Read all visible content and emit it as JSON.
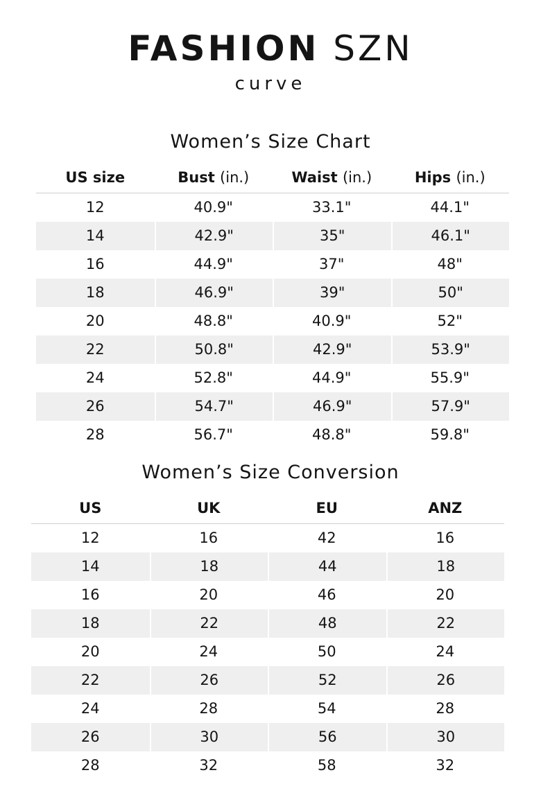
{
  "brand": {
    "title_bold": "FASHION",
    "title_light": "SZN",
    "subtitle": "curve"
  },
  "size_chart": {
    "title": "Women’s Size Chart",
    "headers": [
      {
        "label": "US size",
        "unit": ""
      },
      {
        "label": "Bust",
        "unit": "(in.)"
      },
      {
        "label": "Waist",
        "unit": "(in.)"
      },
      {
        "label": "Hips",
        "unit": "(in.)"
      }
    ],
    "rows": [
      [
        "12",
        "40.9\"",
        "33.1\"",
        "44.1\""
      ],
      [
        "14",
        "42.9\"",
        "35\"",
        "46.1\""
      ],
      [
        "16",
        "44.9\"",
        "37\"",
        "48\""
      ],
      [
        "18",
        "46.9\"",
        "39\"",
        "50\""
      ],
      [
        "20",
        "48.8\"",
        "40.9\"",
        "52\""
      ],
      [
        "22",
        "50.8\"",
        "42.9\"",
        "53.9\""
      ],
      [
        "24",
        "52.8\"",
        "44.9\"",
        "55.9\""
      ],
      [
        "26",
        "54.7\"",
        "46.9\"",
        "57.9\""
      ],
      [
        "28",
        "56.7\"",
        "48.8\"",
        "59.8\""
      ]
    ]
  },
  "size_conversion": {
    "title": "Women’s Size Conversion",
    "headers": [
      "US",
      "UK",
      "EU",
      "ANZ"
    ],
    "rows": [
      [
        "12",
        "16",
        "42",
        "16"
      ],
      [
        "14",
        "18",
        "44",
        "18"
      ],
      [
        "16",
        "20",
        "46",
        "20"
      ],
      [
        "18",
        "22",
        "48",
        "22"
      ],
      [
        "20",
        "24",
        "50",
        "24"
      ],
      [
        "22",
        "26",
        "52",
        "26"
      ],
      [
        "24",
        "28",
        "54",
        "28"
      ],
      [
        "26",
        "30",
        "56",
        "30"
      ],
      [
        "28",
        "32",
        "58",
        "32"
      ]
    ]
  }
}
